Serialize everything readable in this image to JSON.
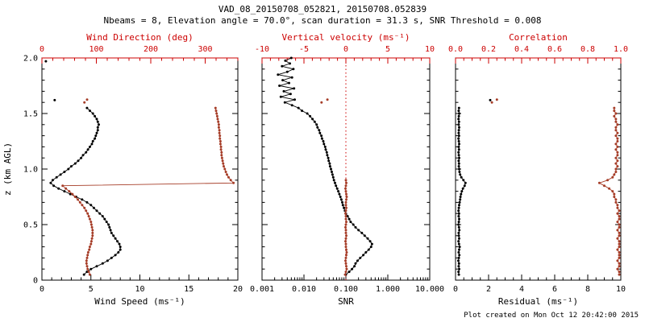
{
  "header": {
    "title": "VAD_08_20150708_052821, 20150708.052839",
    "subtitle": "Nbeams = 8, Elevation angle = 70.0°, scan duration = 31.3 s, SNR Threshold = 0.008"
  },
  "footer": {
    "text": "Plot created on Mon Oct 12 20:42:00 2015"
  },
  "colors": {
    "background": "#ffffff",
    "black": "#000000",
    "axis_red": "#cc0000",
    "data_red": "#a63d28"
  },
  "chart_data": [
    {
      "name": "wind-panel",
      "type": "scatter",
      "ylim": [
        0,
        2
      ],
      "left_axis": {
        "label": "z (km AGL)",
        "tick_values": [
          0,
          0.5,
          1,
          1.5,
          2
        ],
        "tick_labels": [
          "0",
          "0.5",
          "1.0",
          "1.5",
          "2.0"
        ],
        "minor_step": 0.1,
        "show_labels": true
      },
      "bottom_axis": {
        "label": "Wind Speed (ms⁻¹)",
        "scale": "linear",
        "lim": [
          0,
          20
        ],
        "tick_values": [
          0,
          5,
          10,
          15,
          20
        ],
        "tick_labels": [
          "0",
          "5",
          "10",
          "15",
          "20"
        ],
        "minor_step": 1
      },
      "top_axis": {
        "label": "Wind Direction (deg)",
        "scale": "linear",
        "lim": [
          0,
          360
        ],
        "tick_values": [
          0,
          100,
          200,
          300
        ],
        "tick_labels": [
          "0",
          "100",
          "200",
          "300"
        ],
        "minor_step": 20
      },
      "series": [
        {
          "name": "wind-speed",
          "axis": "bottom",
          "color": "black",
          "z": [
            0.05,
            0.075,
            0.1,
            0.125,
            0.15,
            0.175,
            0.2,
            0.225,
            0.25,
            0.275,
            0.3,
            0.325,
            0.35,
            0.375,
            0.4,
            0.425,
            0.45,
            0.475,
            0.5,
            0.525,
            0.55,
            0.575,
            0.6,
            0.625,
            0.65,
            0.675,
            0.7,
            0.725,
            0.75,
            0.775,
            0.8,
            0.825,
            0.85,
            0.875,
            0.9,
            0.925,
            0.95,
            0.975,
            1.0,
            1.025,
            1.05,
            1.075,
            1.1,
            1.125,
            1.15,
            1.175,
            1.2,
            1.225,
            1.25,
            1.275,
            1.3,
            1.325,
            1.35,
            1.375,
            1.4,
            1.425,
            1.45,
            1.475,
            1.5,
            1.525,
            1.55
          ],
          "values": [
            4.3,
            4.6,
            5.0,
            5.6,
            6.2,
            6.7,
            7.1,
            7.5,
            7.8,
            8.0,
            8.0,
            7.9,
            7.7,
            7.5,
            7.3,
            7.1,
            7.0,
            6.9,
            6.8,
            6.6,
            6.4,
            6.2,
            5.9,
            5.6,
            5.3,
            5.0,
            4.6,
            4.1,
            3.5,
            2.9,
            2.3,
            1.7,
            1.2,
            0.9,
            1.1,
            1.5,
            1.9,
            2.3,
            2.7,
            3.0,
            3.4,
            3.7,
            4.0,
            4.2,
            4.5,
            4.7,
            4.9,
            5.1,
            5.2,
            5.4,
            5.5,
            5.6,
            5.7,
            5.7,
            5.8,
            5.7,
            5.6,
            5.4,
            5.2,
            4.9,
            4.6
          ]
        },
        {
          "name": "wind-speed-outliers",
          "axis": "bottom",
          "color": "black",
          "points_only": true,
          "z": [
            1.62,
            1.97
          ],
          "values": [
            1.3,
            0.4
          ]
        },
        {
          "name": "wind-direction",
          "axis": "top",
          "color": "red",
          "z": [
            0.05,
            0.075,
            0.1,
            0.125,
            0.15,
            0.175,
            0.2,
            0.225,
            0.25,
            0.275,
            0.3,
            0.325,
            0.35,
            0.375,
            0.4,
            0.425,
            0.45,
            0.475,
            0.5,
            0.525,
            0.55,
            0.575,
            0.6,
            0.625,
            0.65,
            0.675,
            0.7,
            0.725,
            0.75,
            0.775,
            0.8,
            0.825,
            0.85,
            0.875,
            0.9,
            0.925,
            0.95,
            0.975,
            1.0,
            1.025,
            1.05,
            1.075,
            1.1,
            1.125,
            1.15,
            1.175,
            1.2,
            1.225,
            1.25,
            1.275,
            1.3,
            1.325,
            1.35,
            1.375,
            1.4,
            1.425,
            1.45,
            1.475,
            1.5,
            1.525,
            1.55
          ],
          "values": [
            88,
            86,
            84,
            83,
            82,
            82,
            83,
            84,
            85,
            87,
            88,
            90,
            91,
            92,
            93,
            93,
            93,
            92,
            91,
            90,
            88,
            86,
            84,
            81,
            78,
            74,
            70,
            66,
            61,
            56,
            50,
            44,
            38,
            352,
            347,
            343,
            340,
            338,
            336,
            334,
            333,
            332,
            331,
            330,
            330,
            329,
            329,
            328,
            328,
            327,
            327,
            326,
            326,
            325,
            325,
            324,
            323,
            322,
            321,
            320,
            319
          ]
        },
        {
          "name": "wind-direction-outliers",
          "axis": "top",
          "color": "red",
          "points_only": true,
          "z": [
            1.6,
            1.625
          ],
          "values": [
            78,
            83
          ]
        }
      ]
    },
    {
      "name": "snr-panel",
      "type": "scatter",
      "ylim": [
        0,
        2
      ],
      "left_axis": {
        "label": "",
        "tick_values": [
          0,
          0.5,
          1,
          1.5,
          2
        ],
        "tick_labels": [
          "0",
          "0.5",
          "1.0",
          "1.5",
          "2.0"
        ],
        "minor_step": 0.1,
        "show_labels": false
      },
      "bottom_axis": {
        "label": "SNR",
        "scale": "log",
        "lim": [
          0.001,
          10
        ],
        "tick_values": [
          0.001,
          0.01,
          0.1,
          1,
          10
        ],
        "tick_labels": [
          "0.001",
          "0.010",
          "0.100",
          "1.000",
          "10.000"
        ]
      },
      "top_axis": {
        "label": "Vertical velocity (ms⁻¹)",
        "scale": "linear",
        "lim": [
          -10,
          10
        ],
        "tick_values": [
          -10,
          -5,
          0,
          5,
          10
        ],
        "tick_labels": [
          "-10",
          "-5",
          "0",
          "5",
          "10"
        ],
        "minor_step": 1
      },
      "refline": {
        "axis": "top",
        "value": 0,
        "style": "dotted",
        "color": "red"
      },
      "series": [
        {
          "name": "snr",
          "axis": "bottom",
          "color": "black",
          "z": [
            0.05,
            0.075,
            0.1,
            0.125,
            0.15,
            0.175,
            0.2,
            0.225,
            0.25,
            0.275,
            0.3,
            0.325,
            0.35,
            0.375,
            0.4,
            0.425,
            0.45,
            0.475,
            0.5,
            0.525,
            0.55,
            0.575,
            0.6,
            0.625,
            0.65,
            0.675,
            0.7,
            0.725,
            0.75,
            0.775,
            0.8,
            0.825,
            0.85,
            0.875,
            0.9,
            0.925,
            0.95,
            0.975,
            1.0,
            1.025,
            1.05,
            1.075,
            1.1,
            1.125,
            1.15,
            1.175,
            1.2,
            1.225,
            1.25,
            1.275,
            1.3,
            1.325,
            1.35,
            1.375,
            1.4,
            1.425,
            1.45,
            1.475,
            1.5,
            1.525,
            1.55,
            1.575,
            1.6,
            1.625,
            1.65,
            1.675,
            1.7,
            1.725,
            1.75,
            1.775,
            1.8,
            1.825,
            1.85,
            1.875,
            1.9,
            1.925,
            1.95,
            1.975,
            2.0
          ],
          "values": [
            0.1,
            0.12,
            0.14,
            0.16,
            0.17,
            0.19,
            0.22,
            0.26,
            0.3,
            0.35,
            0.4,
            0.42,
            0.38,
            0.33,
            0.28,
            0.24,
            0.2,
            0.17,
            0.15,
            0.13,
            0.12,
            0.11,
            0.1,
            0.095,
            0.09,
            0.085,
            0.082,
            0.078,
            0.074,
            0.07,
            0.066,
            0.062,
            0.058,
            0.055,
            0.052,
            0.05,
            0.048,
            0.046,
            0.044,
            0.042,
            0.041,
            0.039,
            0.038,
            0.036,
            0.035,
            0.033,
            0.032,
            0.03,
            0.029,
            0.027,
            0.026,
            0.024,
            0.023,
            0.021,
            0.02,
            0.018,
            0.016,
            0.014,
            0.012,
            0.009,
            0.0074,
            0.0052,
            0.0035,
            0.006,
            0.0028,
            0.0048,
            0.0033,
            0.0058,
            0.0026,
            0.0044,
            0.0031,
            0.0052,
            0.0024,
            0.004,
            0.0056,
            0.003,
            0.0046,
            0.0036,
            0.005
          ]
        },
        {
          "name": "vertical-velocity",
          "axis": "top",
          "color": "red",
          "z": [
            0.05,
            0.075,
            0.1,
            0.125,
            0.15,
            0.175,
            0.2,
            0.225,
            0.25,
            0.275,
            0.3,
            0.325,
            0.35,
            0.375,
            0.4,
            0.425,
            0.45,
            0.475,
            0.5,
            0.525,
            0.55,
            0.575,
            0.6,
            0.625,
            0.65,
            0.675,
            0.7,
            0.725,
            0.75,
            0.775,
            0.8,
            0.825,
            0.85,
            0.875,
            0.9
          ],
          "values": [
            -0.1,
            0.0,
            0.1,
            0.05,
            0.0,
            -0.05,
            0.0,
            0.05,
            0.1,
            0.05,
            0.0,
            0.0,
            -0.05,
            0.0,
            0.05,
            0.0,
            0.0,
            -0.05,
            0.0,
            0.05,
            0.0,
            0.0,
            -0.05,
            0.0,
            0.05,
            0.0,
            0.0,
            0.05,
            0.1,
            0.05,
            0.0,
            -0.05,
            0.0,
            0.05,
            0.0
          ]
        },
        {
          "name": "vertical-velocity-outliers",
          "axis": "top",
          "color": "red",
          "points_only": true,
          "z": [
            1.6,
            1.625
          ],
          "values": [
            -2.9,
            -2.2
          ]
        }
      ]
    },
    {
      "name": "residual-panel",
      "type": "scatter",
      "ylim": [
        0,
        2
      ],
      "left_axis": {
        "label": "",
        "tick_values": [
          0,
          0.5,
          1,
          1.5,
          2
        ],
        "tick_labels": [
          "0",
          "0.5",
          "1.0",
          "1.5",
          "2.0"
        ],
        "minor_step": 0.1,
        "show_labels": false
      },
      "bottom_axis": {
        "label": "Residual (ms⁻¹)",
        "scale": "linear",
        "lim": [
          0,
          10
        ],
        "tick_values": [
          0,
          2,
          4,
          6,
          8,
          10
        ],
        "tick_labels": [
          "0",
          "2",
          "4",
          "6",
          "8",
          "10"
        ],
        "minor_step": 0.5
      },
      "top_axis": {
        "label": "Correlation",
        "scale": "linear",
        "lim": [
          0,
          1
        ],
        "tick_values": [
          0,
          0.2,
          0.4,
          0.6,
          0.8,
          1
        ],
        "tick_labels": [
          "0.0",
          "0.2",
          "0.4",
          "0.6",
          "0.8",
          "1.0"
        ],
        "minor_step": 0.05
      },
      "series": [
        {
          "name": "residual",
          "axis": "bottom",
          "color": "black",
          "z": [
            0.05,
            0.075,
            0.1,
            0.125,
            0.15,
            0.175,
            0.2,
            0.225,
            0.25,
            0.275,
            0.3,
            0.325,
            0.35,
            0.375,
            0.4,
            0.425,
            0.45,
            0.475,
            0.5,
            0.525,
            0.55,
            0.575,
            0.6,
            0.625,
            0.65,
            0.675,
            0.7,
            0.725,
            0.75,
            0.775,
            0.8,
            0.825,
            0.85,
            0.875,
            0.9,
            0.925,
            0.95,
            0.975,
            1.0,
            1.025,
            1.05,
            1.075,
            1.1,
            1.125,
            1.15,
            1.175,
            1.2,
            1.225,
            1.25,
            1.275,
            1.3,
            1.325,
            1.35,
            1.375,
            1.4,
            1.425,
            1.45,
            1.475,
            1.5,
            1.525,
            1.55
          ],
          "values": [
            0.2,
            0.18,
            0.22,
            0.19,
            0.21,
            0.17,
            0.2,
            0.23,
            0.19,
            0.22,
            0.25,
            0.21,
            0.18,
            0.22,
            0.2,
            0.19,
            0.23,
            0.21,
            0.18,
            0.2,
            0.22,
            0.19,
            0.21,
            0.18,
            0.2,
            0.22,
            0.25,
            0.28,
            0.3,
            0.33,
            0.38,
            0.45,
            0.55,
            0.6,
            0.48,
            0.35,
            0.28,
            0.24,
            0.22,
            0.2,
            0.21,
            0.19,
            0.22,
            0.2,
            0.18,
            0.21,
            0.19,
            0.22,
            0.2,
            0.18,
            0.21,
            0.19,
            0.2,
            0.22,
            0.19,
            0.21,
            0.18,
            0.2,
            0.22,
            0.19,
            0.21
          ]
        },
        {
          "name": "residual-outliers",
          "axis": "bottom",
          "color": "black",
          "points_only": true,
          "z": [
            1.62
          ],
          "values": [
            2.1
          ]
        },
        {
          "name": "correlation",
          "axis": "top",
          "color": "red",
          "z": [
            0.05,
            0.075,
            0.1,
            0.125,
            0.15,
            0.175,
            0.2,
            0.225,
            0.25,
            0.275,
            0.3,
            0.325,
            0.35,
            0.375,
            0.4,
            0.425,
            0.45,
            0.475,
            0.5,
            0.525,
            0.55,
            0.575,
            0.6,
            0.625,
            0.65,
            0.675,
            0.7,
            0.725,
            0.75,
            0.775,
            0.8,
            0.825,
            0.85,
            0.875,
            0.9,
            0.925,
            0.95,
            0.975,
            1.0,
            1.025,
            1.05,
            1.075,
            1.1,
            1.125,
            1.15,
            1.175,
            1.2,
            1.225,
            1.25,
            1.275,
            1.3,
            1.325,
            1.35,
            1.375,
            1.4,
            1.425,
            1.45,
            1.475,
            1.5,
            1.525,
            1.55
          ],
          "values": [
            0.99,
            0.99,
            0.98,
            0.99,
            0.99,
            0.98,
            0.99,
            0.99,
            0.99,
            0.98,
            0.99,
            0.99,
            0.99,
            0.98,
            0.99,
            0.99,
            0.98,
            0.99,
            0.99,
            0.98,
            0.99,
            0.99,
            0.98,
            0.99,
            0.98,
            0.98,
            0.97,
            0.97,
            0.96,
            0.96,
            0.95,
            0.93,
            0.9,
            0.87,
            0.92,
            0.95,
            0.96,
            0.97,
            0.97,
            0.98,
            0.97,
            0.98,
            0.97,
            0.98,
            0.98,
            0.97,
            0.98,
            0.97,
            0.98,
            0.98,
            0.97,
            0.98,
            0.97,
            0.97,
            0.98,
            0.97,
            0.97,
            0.96,
            0.97,
            0.96,
            0.96
          ]
        },
        {
          "name": "correlation-outliers",
          "axis": "top",
          "color": "red",
          "points_only": true,
          "z": [
            1.6,
            1.625
          ],
          "values": [
            0.22,
            0.25
          ]
        }
      ]
    }
  ]
}
